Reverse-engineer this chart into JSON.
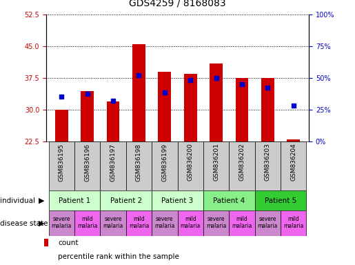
{
  "title": "GDS4259 / 8168083",
  "samples": [
    "GSM836195",
    "GSM836196",
    "GSM836197",
    "GSM836198",
    "GSM836199",
    "GSM836200",
    "GSM836201",
    "GSM836202",
    "GSM836203",
    "GSM836204"
  ],
  "red_bar_heights": [
    30.0,
    34.5,
    32.0,
    45.5,
    39.0,
    38.5,
    41.0,
    37.5,
    37.5,
    23.0
  ],
  "blue_y_values": [
    33.2,
    33.8,
    32.2,
    38.2,
    34.2,
    37.0,
    37.5,
    36.0,
    35.2,
    31.0
  ],
  "y_min": 22.5,
  "y_max": 52.5,
  "y_ticks_left": [
    22.5,
    30.0,
    37.5,
    45.0,
    52.5
  ],
  "y_ticks_right_labels": [
    "0%",
    "25%",
    "50%",
    "75%",
    "100%"
  ],
  "y_ticks_right_values": [
    22.5,
    30.0,
    37.5,
    45.0,
    52.5
  ],
  "bar_color": "#cc0000",
  "blue_color": "#0000cc",
  "bar_width": 0.5,
  "patients": [
    {
      "label": "Patient 1",
      "cols": [
        0,
        1
      ],
      "color": "#ccffcc"
    },
    {
      "label": "Patient 2",
      "cols": [
        2,
        3
      ],
      "color": "#ccffcc"
    },
    {
      "label": "Patient 3",
      "cols": [
        4,
        5
      ],
      "color": "#ccffcc"
    },
    {
      "label": "Patient 4",
      "cols": [
        6,
        7
      ],
      "color": "#88ee88"
    },
    {
      "label": "Patient 5",
      "cols": [
        8,
        9
      ],
      "color": "#33cc33"
    }
  ],
  "disease_states": [
    {
      "label": "severe\nmalaria",
      "col": 0,
      "color": "#cc88cc"
    },
    {
      "label": "mild\nmalaria",
      "col": 1,
      "color": "#ee66ee"
    },
    {
      "label": "severe\nmalaria",
      "col": 2,
      "color": "#cc88cc"
    },
    {
      "label": "mild\nmalaria",
      "col": 3,
      "color": "#ee66ee"
    },
    {
      "label": "severe\nmalaria",
      "col": 4,
      "color": "#cc88cc"
    },
    {
      "label": "mild\nmalaria",
      "col": 5,
      "color": "#ee66ee"
    },
    {
      "label": "severe\nmalaria",
      "col": 6,
      "color": "#cc88cc"
    },
    {
      "label": "mild\nmalaria",
      "col": 7,
      "color": "#ee66ee"
    },
    {
      "label": "severe\nmalaria",
      "col": 8,
      "color": "#cc88cc"
    },
    {
      "label": "mild\nmalaria",
      "col": 9,
      "color": "#ee66ee"
    }
  ],
  "bg_color": "#ffffff",
  "left_label_color": "#cc0000",
  "right_label_color": "#0000cc",
  "title_fontsize": 10,
  "tick_fontsize": 7,
  "sample_label_fontsize": 6.5,
  "legend_fontsize": 7.5,
  "sample_bg_color": "#cccccc"
}
